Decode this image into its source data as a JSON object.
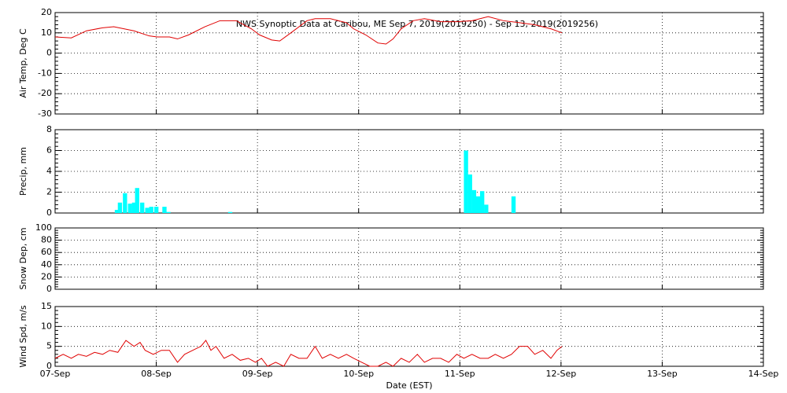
{
  "chart_data": [
    {
      "type": "line",
      "title": "NWS Synoptic Data at Caribou, ME   Sep  7, 2019(2019250) - Sep 13, 2019(2019256)",
      "ylabel": "Air Temp, Deg C",
      "xlim": [
        0,
        7
      ],
      "xticks": [
        0,
        1,
        2,
        3,
        4,
        5,
        6,
        7
      ],
      "ylim": [
        -30,
        20
      ],
      "yticks": [
        -30,
        -20,
        -10,
        0,
        10,
        20
      ],
      "grid": true,
      "series": [
        {
          "color": "#e00000",
          "x": [
            0,
            0.16,
            0.31,
            0.47,
            0.58,
            0.78,
            0.93,
            1.01,
            1.13,
            1.21,
            1.32,
            1.48,
            1.63,
            1.79,
            1.94,
            2.02,
            2.14,
            2.22,
            2.33,
            2.49,
            2.57,
            2.72,
            2.88,
            2.95,
            3.07,
            3.19,
            3.27,
            3.34,
            3.42,
            3.54,
            3.65,
            3.81,
            3.97,
            4.12,
            4.28,
            4.43,
            4.59,
            4.74,
            4.9,
            5.01
          ],
          "values": [
            8,
            7.5,
            11,
            12.5,
            13,
            11,
            8.5,
            8,
            8,
            7,
            9,
            13,
            16,
            16,
            12,
            9,
            6.5,
            6,
            10,
            16,
            17,
            17,
            15,
            12,
            9,
            5,
            4.5,
            7,
            12,
            16,
            17,
            15.5,
            15.5,
            16,
            18,
            16,
            15,
            14,
            12,
            10
          ]
        }
      ]
    },
    {
      "type": "bar",
      "ylabel": "Precip, mm",
      "xlim": [
        0,
        7
      ],
      "xticks": [
        0,
        1,
        2,
        3,
        4,
        5,
        6,
        7
      ],
      "ylim": [
        0,
        8
      ],
      "yticks": [
        0,
        2,
        4,
        6,
        8
      ],
      "grid": true,
      "series": [
        {
          "color": "#00ffff",
          "x": [
            0.59,
            0.62,
            0.67,
            0.72,
            0.76,
            0.79,
            0.84,
            0.89,
            0.93,
            0.98,
            1.06,
            1.1,
            1.71,
            4.04,
            4.08,
            4.12,
            4.16,
            4.2,
            4.24,
            4.51
          ],
          "values": [
            0.3,
            1.0,
            1.9,
            0.9,
            1.0,
            2.4,
            1.0,
            0.5,
            0.6,
            0.6,
            0.6,
            0.1,
            0.1,
            6.0,
            3.7,
            2.2,
            1.6,
            2.1,
            0.8,
            1.6
          ]
        }
      ]
    },
    {
      "type": "line",
      "ylabel": "Snow Dep, cm",
      "xlim": [
        0,
        7
      ],
      "xticks": [
        0,
        1,
        2,
        3,
        4,
        5,
        6,
        7
      ],
      "ylim": [
        0,
        100
      ],
      "yticks": [
        0,
        20,
        40,
        60,
        80,
        100
      ],
      "grid": true,
      "series": []
    },
    {
      "type": "line",
      "ylabel": "Wind Spd, m/s",
      "xlabel": "Date (EST)",
      "xlim": [
        0,
        7
      ],
      "xticks": [
        {
          "value": 0,
          "label": "07-Sep"
        },
        {
          "value": 1,
          "label": "08-Sep"
        },
        {
          "value": 2,
          "label": "09-Sep"
        },
        {
          "value": 3,
          "label": "10-Sep"
        },
        {
          "value": 4,
          "label": "11-Sep"
        },
        {
          "value": 5,
          "label": "12-Sep"
        },
        {
          "value": 6,
          "label": "13-Sep"
        },
        {
          "value": 7,
          "label": "14-Sep"
        }
      ],
      "ylim": [
        0,
        15
      ],
      "yticks": [
        0,
        5,
        10,
        15
      ],
      "grid": true,
      "series": [
        {
          "color": "#e00000",
          "x": [
            0,
            0.08,
            0.16,
            0.23,
            0.31,
            0.39,
            0.47,
            0.54,
            0.62,
            0.7,
            0.78,
            0.84,
            0.89,
            0.97,
            1.05,
            1.13,
            1.21,
            1.28,
            1.36,
            1.44,
            1.49,
            1.54,
            1.59,
            1.67,
            1.75,
            1.83,
            1.91,
            1.98,
            2.04,
            2.1,
            2.18,
            2.26,
            2.33,
            2.41,
            2.49,
            2.57,
            2.64,
            2.72,
            2.8,
            2.88,
            2.95,
            3.03,
            3.11,
            3.19,
            3.27,
            3.34,
            3.42,
            3.5,
            3.58,
            3.65,
            3.73,
            3.81,
            3.89,
            3.97,
            4.04,
            4.12,
            4.2,
            4.28,
            4.35,
            4.43,
            4.51,
            4.59,
            4.67,
            4.74,
            4.82,
            4.9,
            4.96,
            5.01
          ],
          "values": [
            2,
            3,
            2,
            3,
            2.5,
            3.5,
            3,
            4,
            3.5,
            6.5,
            5,
            6,
            4,
            3,
            4,
            4,
            1,
            3,
            4,
            5,
            6.5,
            4,
            5,
            2,
            3,
            1.5,
            2,
            1,
            2,
            0,
            1,
            0,
            3,
            2,
            2,
            5,
            2,
            3,
            2,
            3,
            2,
            1,
            0,
            0,
            1,
            0,
            2,
            1,
            3,
            1,
            2,
            2,
            1,
            3,
            2,
            3,
            2,
            2,
            3,
            2,
            3,
            5,
            5,
            3,
            4,
            2,
            4,
            5
          ]
        }
      ]
    }
  ]
}
